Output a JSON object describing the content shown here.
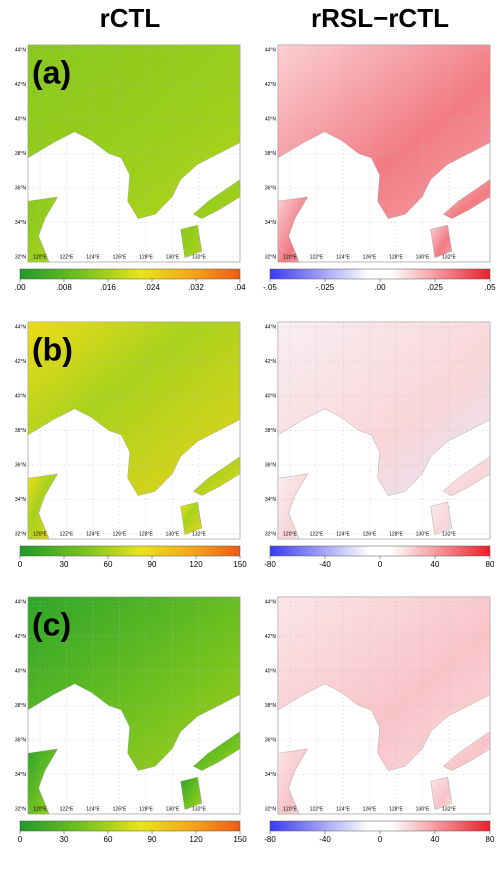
{
  "columns": [
    "rCTL",
    "rRSL−rCTL"
  ],
  "panels": [
    {
      "label": "(a)",
      "colorbars": [
        [
          ".00",
          ".008",
          ".016",
          ".024",
          ".032",
          ".04"
        ],
        [
          "-.05",
          "-.025",
          ".00",
          ".025",
          ".05"
        ]
      ]
    },
    {
      "label": "(b)",
      "colorbars": [
        [
          "0",
          "30",
          "60",
          "90",
          "120",
          "150"
        ],
        [
          "-80",
          "-40",
          "0",
          "40",
          "80"
        ]
      ]
    },
    {
      "label": "(c)",
      "colorbars": [
        [
          "0",
          "30",
          "60",
          "90",
          "120",
          "150"
        ],
        [
          "-80",
          "-40",
          "0",
          "40",
          "80"
        ]
      ]
    }
  ],
  "lat_labels": [
    "44°N",
    "42°N",
    "40°N",
    "38°N",
    "36°N",
    "34°N",
    "32°N"
  ],
  "lon_labels": [
    "120°E",
    "122°E",
    "124°E",
    "126°E",
    "128°E",
    "130°E",
    "132°E"
  ]
}
